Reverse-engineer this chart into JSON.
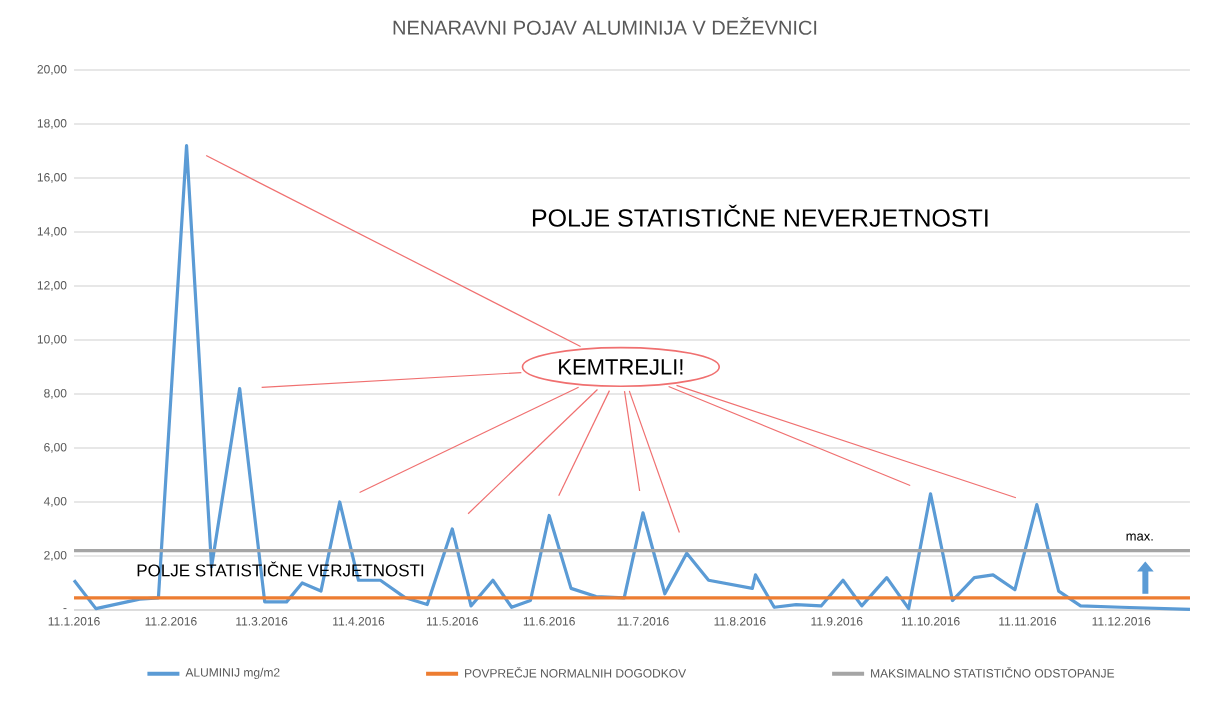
{
  "chart_data": {
    "type": "line",
    "title": "NENARAVNI POJAV ALUMINIJA V DEŽEVNICI",
    "x": [
      "2016-01-11",
      "2016-01-18",
      "2016-02-01",
      "2016-02-07",
      "2016-02-16",
      "2016-02-24",
      "2016-03-04",
      "2016-03-12",
      "2016-03-19",
      "2016-03-24",
      "2016-03-30",
      "2016-04-05",
      "2016-04-11",
      "2016-04-18",
      "2016-04-26",
      "2016-05-03",
      "2016-05-11",
      "2016-05-17",
      "2016-05-24",
      "2016-05-30",
      "2016-06-05",
      "2016-06-11",
      "2016-06-18",
      "2016-06-26",
      "2016-07-05",
      "2016-07-11",
      "2016-07-18",
      "2016-07-25",
      "2016-08-01",
      "2016-08-15",
      "2016-08-16",
      "2016-08-22",
      "2016-08-29",
      "2016-09-06",
      "2016-09-13",
      "2016-09-19",
      "2016-09-27",
      "2016-10-04",
      "2016-10-11",
      "2016-10-18",
      "2016-10-25",
      "2016-10-31",
      "2016-11-07",
      "2016-11-14",
      "2016-11-21",
      "2016-11-28",
      "2016-12-11",
      "2017-01-02"
    ],
    "series": [
      {
        "name": "ALUMINIJ mg/m2",
        "color": "#5b9bd5",
        "values": [
          1.1,
          0.05,
          0.4,
          0.45,
          17.2,
          1.6,
          8.2,
          0.3,
          0.3,
          1.0,
          0.7,
          4.0,
          1.1,
          1.1,
          0.45,
          0.2,
          3.0,
          0.15,
          1.1,
          0.1,
          0.35,
          3.5,
          0.8,
          0.5,
          0.45,
          3.6,
          0.6,
          2.1,
          1.1,
          0.8,
          1.3,
          0.1,
          0.2,
          0.15,
          1.1,
          0.15,
          1.2,
          0.05,
          4.3,
          0.35,
          1.2,
          1.3,
          0.75,
          3.9,
          0.7,
          0.15,
          0.1,
          0.02
        ]
      },
      {
        "name": "POVPREČJE NORMALNIH DOGODKOV",
        "color": "#ed7d31",
        "x": [
          "2016-01-11",
          "2017-01-02"
        ],
        "values": [
          0.45,
          0.45
        ]
      },
      {
        "name": "MAKSIMALNO STATISTIČNO ODSTOPANJE",
        "color": "#a5a5a5",
        "x": [
          "2016-01-11",
          "2017-01-02"
        ],
        "values": [
          2.2,
          2.2
        ]
      }
    ],
    "xlim": [
      "2016-01-11",
      "2017-01-02"
    ],
    "xticks": [
      {
        "value": "2016-01-11",
        "label": "11.1.2016"
      },
      {
        "value": "2016-02-11",
        "label": "11.2.2016"
      },
      {
        "value": "2016-03-11",
        "label": "11.3.2016"
      },
      {
        "value": "2016-04-11",
        "label": "11.4.2016"
      },
      {
        "value": "2016-05-11",
        "label": "11.5.2016"
      },
      {
        "value": "2016-06-11",
        "label": "11.6.2016"
      },
      {
        "value": "2016-07-11",
        "label": "11.7.2016"
      },
      {
        "value": "2016-08-11",
        "label": "11.8.2016"
      },
      {
        "value": "2016-09-11",
        "label": "11.9.2016"
      },
      {
        "value": "2016-10-11",
        "label": "11.10.2016"
      },
      {
        "value": "2016-11-11",
        "label": "11.11.2016"
      },
      {
        "value": "2016-12-11",
        "label": "11.12.2016"
      }
    ],
    "ylim": [
      0,
      20
    ],
    "yticks": [
      {
        "value": 0,
        "label": "-"
      },
      {
        "value": 2,
        "label": "2,00"
      },
      {
        "value": 4,
        "label": "4,00"
      },
      {
        "value": 6,
        "label": "6,00"
      },
      {
        "value": 8,
        "label": "8,00"
      },
      {
        "value": 10,
        "label": "10,00"
      },
      {
        "value": 12,
        "label": "12,00"
      },
      {
        "value": 14,
        "label": "14,00"
      },
      {
        "value": 16,
        "label": "16,00"
      },
      {
        "value": 18,
        "label": "18,00"
      },
      {
        "value": 20,
        "label": "20,00"
      }
    ],
    "grid": "y",
    "legend": "bottom",
    "annotations": [
      "POLJE STATISTIČNE NEVERJETNOSTI",
      "POLJE STATISTIČNE VERJETNOSTI",
      "KEMTREJLI!",
      "max."
    ]
  }
}
